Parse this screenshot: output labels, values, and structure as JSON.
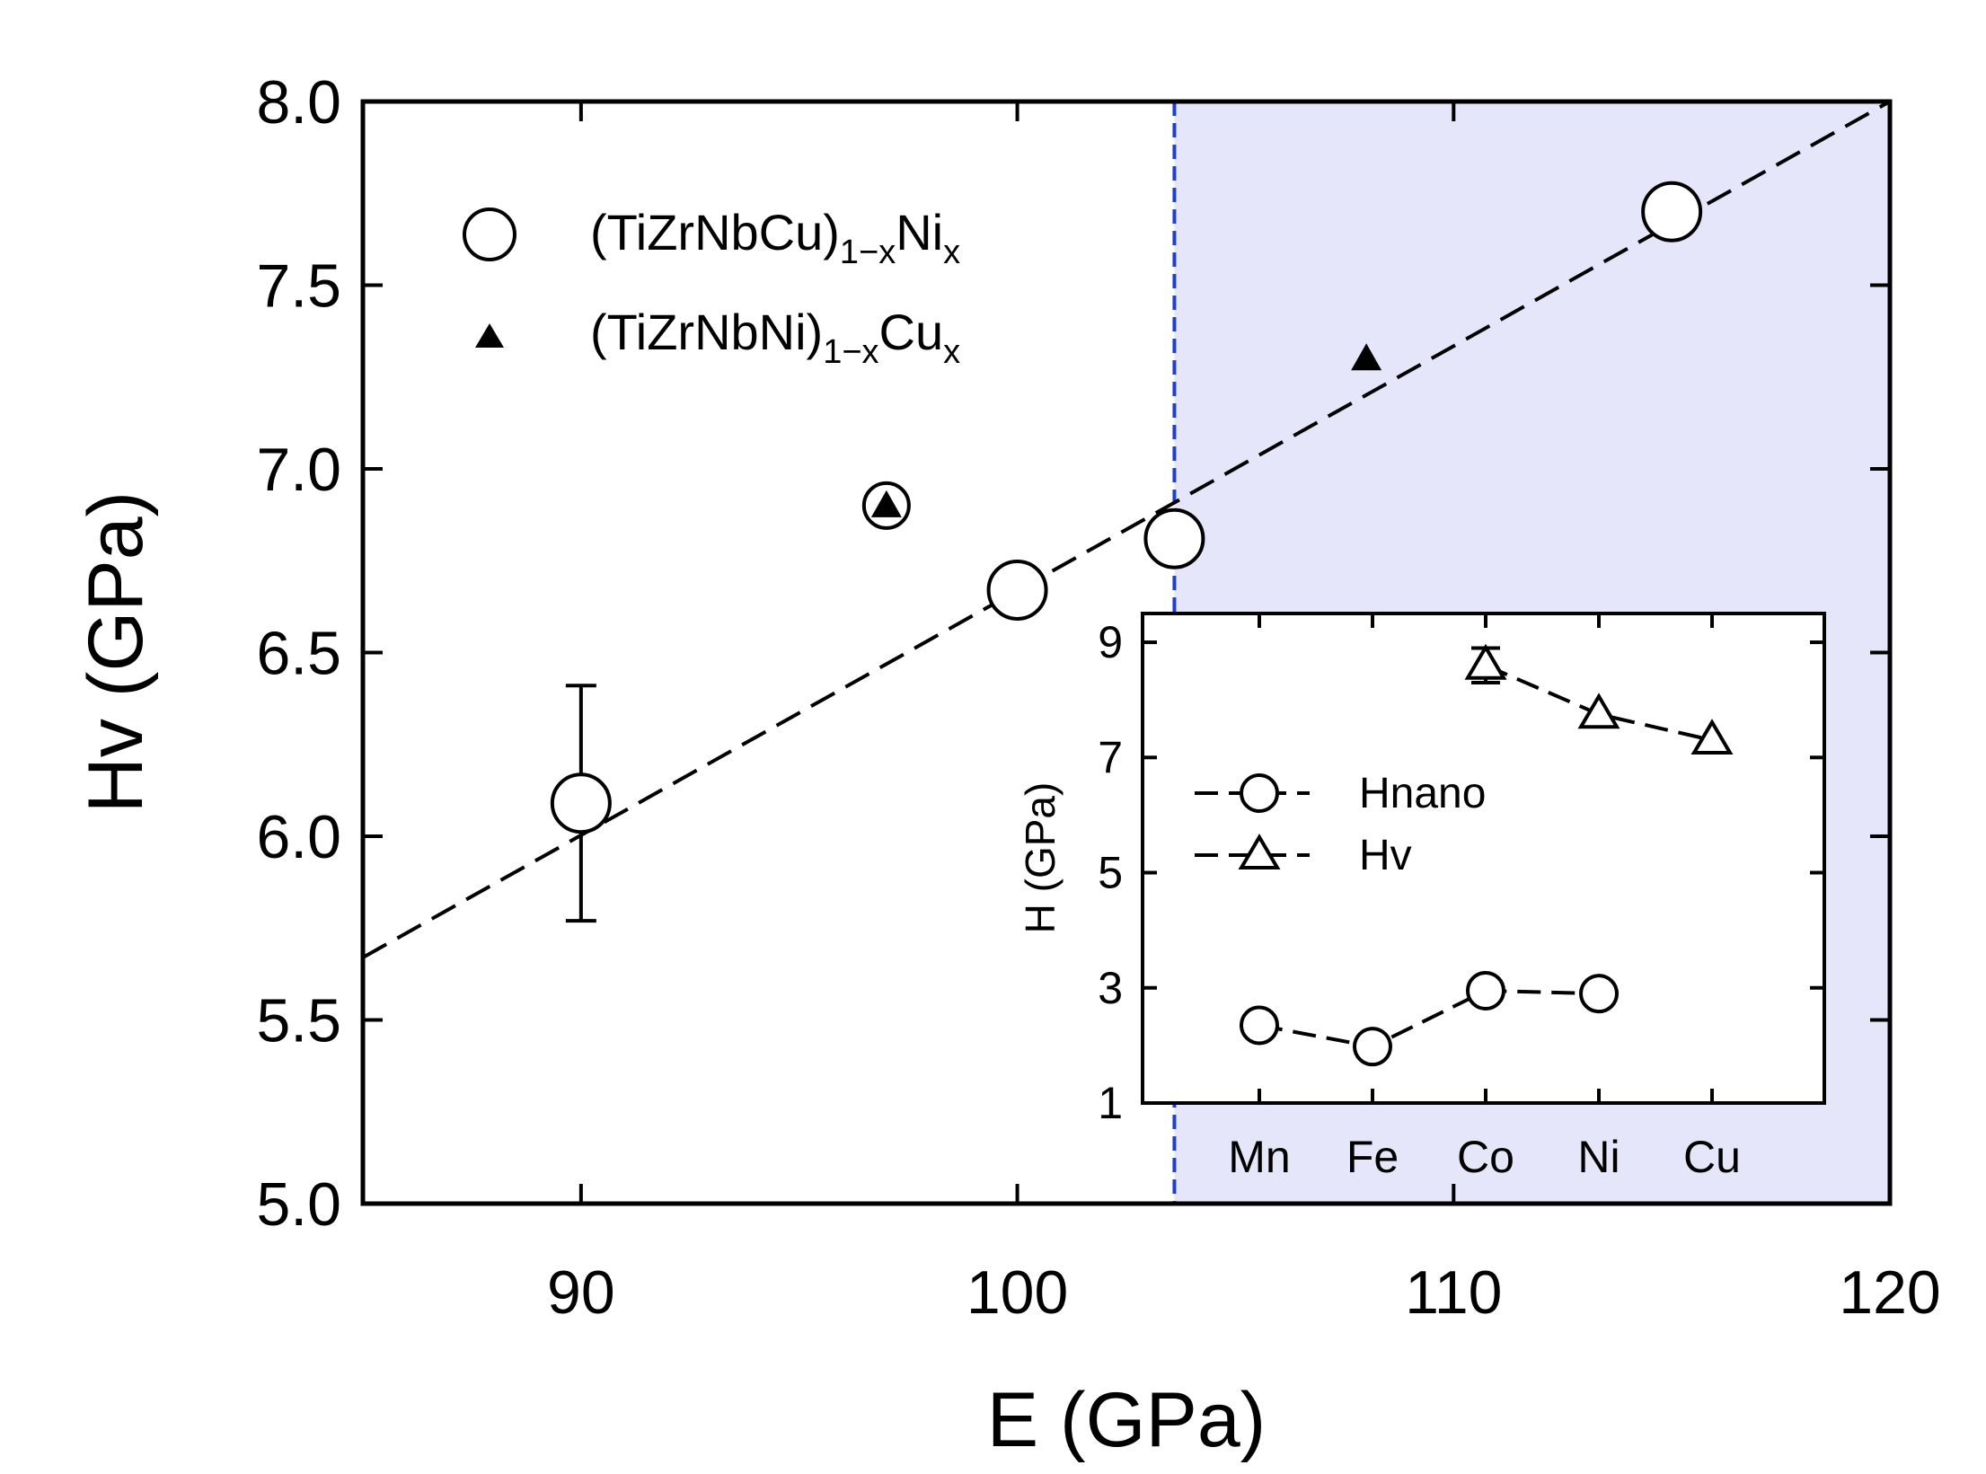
{
  "colors": {
    "shade": "#e6e6fa",
    "divider": "#1f3fd1",
    "ink": "#000000",
    "open_marker_fill": "#ffffff"
  },
  "chart_data": [
    {
      "type": "scatter",
      "title": "",
      "xlabel": "E (GPa)",
      "ylabel": "Hv (GPa)",
      "xlim": [
        85,
        120
      ],
      "ylim": [
        5.0,
        8.0
      ],
      "xticks": [
        90,
        100,
        110,
        120
      ],
      "xtick_labels": [
        "90",
        "100",
        "110",
        "120"
      ],
      "yticks": [
        5.0,
        5.5,
        6.0,
        6.5,
        7.0,
        7.5,
        8.0
      ],
      "ytick_labels": [
        "5.0",
        "5.5",
        "6.0",
        "6.5",
        "7.0",
        "7.5",
        "8.0"
      ],
      "grid": false,
      "legend_position": "top-left",
      "shaded_region": {
        "x_from": 103.6,
        "x_to": 120
      },
      "divider_x": 103.6,
      "fit_line": {
        "x": [
          85,
          120
        ],
        "y": [
          5.67,
          8.0
        ],
        "style": "dashed"
      },
      "series": [
        {
          "name": "(TiZrNbCu)1-xNix",
          "legend_main": "(TiZrNbCu)",
          "legend_sub": "1−x",
          "legend_element": "Ni",
          "legend_sub2": "x",
          "marker": "open-circle",
          "x": [
            90,
            97,
            100,
            103.6,
            115
          ],
          "y": [
            6.09,
            6.9,
            6.67,
            6.81,
            7.7
          ],
          "error": [
            0.32,
            0,
            0,
            0,
            0
          ]
        },
        {
          "name": "(TiZrNbNi)1-xCux",
          "legend_main": "(TiZrNbNi)",
          "legend_sub": "1−x",
          "legend_element": "Cu",
          "legend_sub2": "x",
          "marker": "filled-triangle",
          "x": [
            97,
            108
          ],
          "y": [
            6.9,
            7.3
          ]
        }
      ]
    },
    {
      "type": "line",
      "title": "",
      "xlabel": "",
      "ylabel": "H (GPa)",
      "categories": [
        "Mn",
        "Fe",
        "Co",
        "Ni",
        "Cu"
      ],
      "ylim": [
        1,
        9.5
      ],
      "yticks": [
        1,
        3,
        5,
        7,
        9
      ],
      "ytick_labels": [
        "1",
        "3",
        "5",
        "7",
        "9"
      ],
      "grid": false,
      "legend_position": "left",
      "series": [
        {
          "name": "Hnano",
          "marker": "open-circle",
          "values": [
            2.35,
            1.98,
            2.95,
            2.9,
            null
          ]
        },
        {
          "name": "Hv",
          "marker": "open-triangle",
          "values": [
            null,
            null,
            8.6,
            7.75,
            7.3
          ],
          "error": [
            null,
            null,
            0.3,
            0,
            0
          ]
        }
      ]
    }
  ]
}
